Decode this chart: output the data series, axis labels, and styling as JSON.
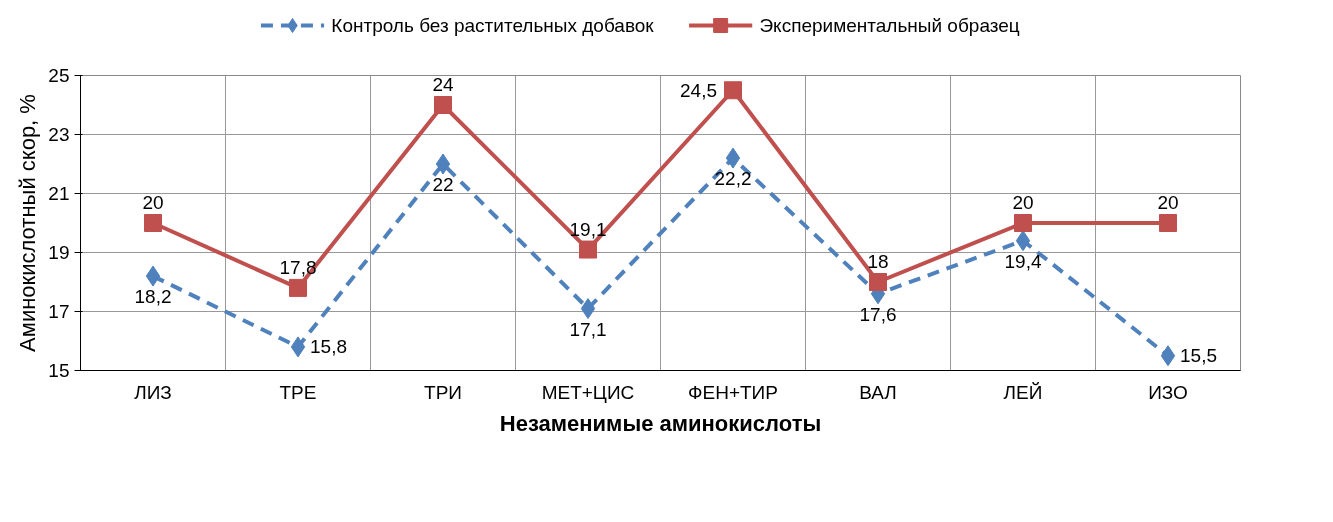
{
  "chart_data": {
    "type": "line",
    "xlabel": "Незаменимые аминокислоты",
    "ylabel": "Аминокислотный скор, %",
    "categories": [
      "ЛИЗ",
      "ТРЕ",
      "ТРИ",
      "МЕТ+ЦИС",
      "ФЕН+ТИР",
      "ВАЛ",
      "ЛЕЙ",
      "ИЗО"
    ],
    "ylim": [
      15,
      25
    ],
    "yticks": [
      15,
      17,
      19,
      21,
      23,
      25
    ],
    "grid": true,
    "legend": "top",
    "series": [
      {
        "name": "Контроль без растительных добавок",
        "color": "#4f81bd",
        "marker": "diamond",
        "line_style": "dashed",
        "values": [
          18.2,
          15.8,
          22,
          17.1,
          22.2,
          17.6,
          19.4,
          15.5
        ],
        "value_labels": [
          "18,2",
          "15,8",
          "22",
          "17,1",
          "22,2",
          "17,6",
          "19,4",
          "15,5"
        ]
      },
      {
        "name": "Экспериментальный образец",
        "color": "#c0504d",
        "marker": "square",
        "line_style": "solid",
        "values": [
          20,
          17.8,
          24,
          19.1,
          24.5,
          18,
          20,
          20
        ],
        "value_labels": [
          "20",
          "17,8",
          "24",
          "19,1",
          "24,5",
          "18",
          "20",
          "20"
        ]
      }
    ]
  }
}
